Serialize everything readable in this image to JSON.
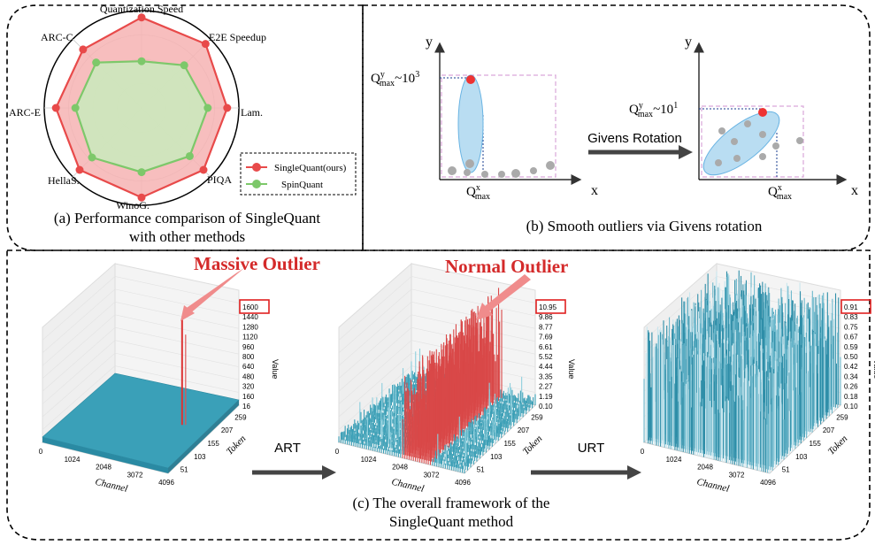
{
  "panel_a": {
    "caption_line1": "(a) Performance comparison of SingleQuant",
    "caption_line2": "with other methods",
    "axes": [
      "Quantization Speed",
      "E2E Speedup",
      "Lam.",
      "PIQA",
      "WinoG.",
      "HellaS.",
      "ARC-E",
      "ARC-C"
    ],
    "legend": [
      "SingleQuant(ours)",
      "SpinQuant"
    ],
    "colors": {
      "ours": "#e84a4a",
      "ours_fill": "#f6b3b3",
      "spin": "#7dc86a",
      "spin_fill": "#c9ebbd"
    }
  },
  "panel_b": {
    "caption": "(b) Smooth outliers via Givens rotation",
    "left_ylabel": "Q",
    "left_ysup": "y",
    "left_ysub": "max",
    "left_yval": "~10",
    "left_yexp": "3",
    "right_yval": "~10",
    "right_yexp": "1",
    "xlabel_base": "Q",
    "xlabel_sup": "x",
    "xlabel_sub": "max",
    "axis_x": "x",
    "axis_y": "y",
    "arrow_label": "Givens Rotation"
  },
  "panel_c": {
    "caption_line1": "(c)  The overall framework of the",
    "caption_line2": "SingleQuant method",
    "massive_outlier": "Massive Outlier",
    "normal_outlier": "Normal Outlier",
    "art_label": "ART",
    "urt_label": "URT",
    "channel_label": "Channel",
    "token_label": "Token",
    "value_label": "Value",
    "channel_ticks": [
      "0",
      "1024",
      "2048",
      "3072",
      "4096"
    ],
    "token_ticks": [
      "51",
      "103",
      "155",
      "207",
      "259"
    ],
    "plot1_z": [
      "16",
      "160",
      "320",
      "480",
      "640",
      "800",
      "960",
      "1120",
      "1280",
      "1440",
      "1600"
    ],
    "plot1_max": "1600",
    "plot2_z": [
      "0.10",
      "1.19",
      "2.27",
      "3.35",
      "4.44",
      "5.52",
      "6.61",
      "7.69",
      "8.77",
      "9.86",
      "10.95"
    ],
    "plot2_max": "10.95",
    "plot3_z": [
      "0.10",
      "0.18",
      "0.26",
      "0.34",
      "0.42",
      "0.50",
      "0.59",
      "0.67",
      "0.75",
      "0.83",
      "0.91"
    ],
    "plot3_max": "0.91"
  }
}
